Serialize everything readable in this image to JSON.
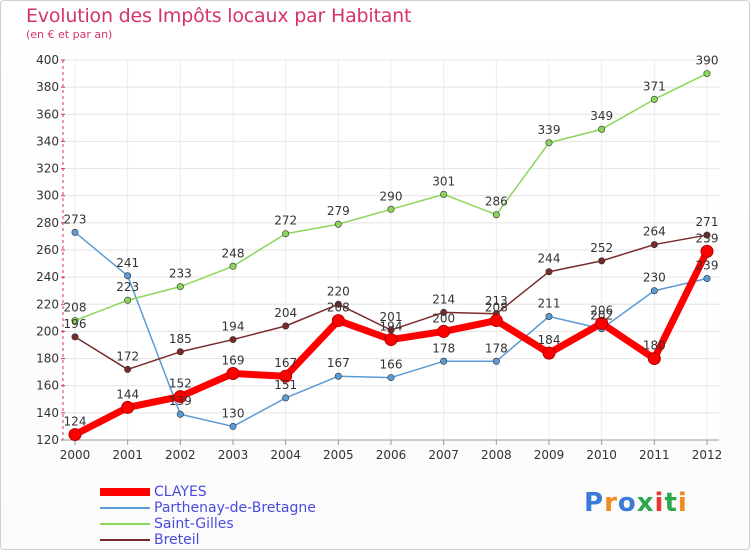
{
  "title": "Evolution des Impôts locaux par Habitant",
  "subtitle": "(en € et par an)",
  "logo": {
    "text": "Proxiti",
    "colors": [
      "#3b7bd8",
      "#f08a1c",
      "#3b7bd8",
      "#2fa84f",
      "#e53935",
      "#2fa84f",
      "#f08a1c"
    ]
  },
  "chart_data": {
    "type": "line",
    "x": [
      "2000",
      "2001",
      "2002",
      "2003",
      "2004",
      "2005",
      "2006",
      "2007",
      "2008",
      "2009",
      "2010",
      "2011",
      "2012"
    ],
    "ylim": [
      120,
      400
    ],
    "yticks": [
      120,
      140,
      160,
      180,
      200,
      220,
      240,
      260,
      280,
      300,
      320,
      340,
      360,
      380,
      400
    ],
    "grid": true,
    "legend_position": "bottom-left",
    "series": [
      {
        "name": "CLAYES",
        "color": "#ff0000",
        "values": [
          124,
          144,
          152,
          169,
          167,
          208,
          194,
          200,
          208,
          184,
          206,
          180,
          259
        ],
        "labels": [
          "124",
          "144",
          "152",
          "169",
          "167",
          "208",
          "194",
          "200",
          "208",
          "184",
          "206",
          "180",
          "259"
        ],
        "bold": true
      },
      {
        "name": "Parthenay-de-Bretagne",
        "color": "#5b9bd5",
        "values": [
          273,
          241,
          139,
          130,
          151,
          167,
          166,
          178,
          178,
          211,
          202,
          230,
          239
        ],
        "labels": [
          "273",
          "241",
          "139",
          "130",
          "151",
          "167",
          "166",
          "178",
          "178",
          "211",
          "202",
          "230",
          "239"
        ]
      },
      {
        "name": "Saint-Gilles",
        "color": "#8bd65a",
        "values": [
          208,
          223,
          233,
          248,
          272,
          279,
          290,
          301,
          286,
          339,
          349,
          371,
          390
        ],
        "labels": [
          "208",
          "223",
          "233",
          "248",
          "272",
          "279",
          "290",
          "301",
          "286",
          "339",
          "349",
          "371",
          "390"
        ]
      },
      {
        "name": "Breteil",
        "color": "#7a2a2a",
        "values": [
          196,
          172,
          185,
          194,
          204,
          220,
          201,
          214,
          213,
          244,
          252,
          264,
          271
        ],
        "labels": [
          "196",
          "172",
          "185",
          "194",
          "204",
          "220",
          "201",
          "214",
          "213",
          "244",
          "252",
          "264",
          "271"
        ]
      }
    ]
  }
}
